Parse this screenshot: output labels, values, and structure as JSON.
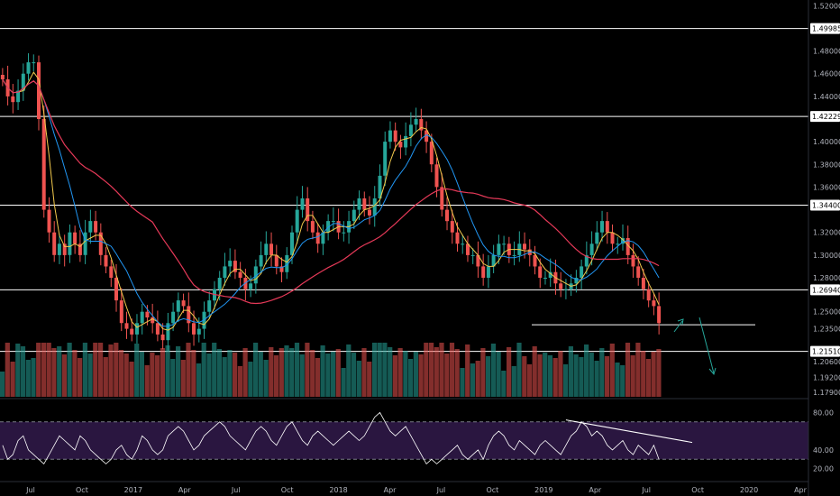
{
  "chart_data": {
    "type": "candlestick",
    "price_axis": {
      "ticks": [
        "1.52000",
        "1.48000",
        "1.46000",
        "1.44000",
        "1.40000",
        "1.38000",
        "1.36000",
        "1.32000",
        "1.30000",
        "1.28000",
        "1.25000",
        "1.23500",
        "1.20600",
        "1.19200",
        "1.17900"
      ],
      "range": [
        1.175,
        1.525
      ]
    },
    "levels": [
      {
        "value": 1.49985,
        "label": "1.49985"
      },
      {
        "value": 1.42229,
        "label": "1.42229"
      },
      {
        "value": 1.344,
        "label": "1.34400"
      },
      {
        "value": 1.2694,
        "label": "1.26940"
      },
      {
        "value": 1.2151,
        "label": "1.21510"
      }
    ],
    "support_line_price": 1.2385,
    "rsi_axis": {
      "ticks": [
        "80.00",
        "40.00",
        "20.00"
      ],
      "upper_band": 70,
      "lower_band": 30,
      "range": [
        10,
        90
      ]
    },
    "time_axis": [
      "Jul",
      "Oct",
      "2017",
      "Apr",
      "Jul",
      "Oct",
      "2018",
      "Apr",
      "Jul",
      "Oct",
      "2019",
      "Apr",
      "Jul",
      "Oct",
      "2020",
      "Apr"
    ],
    "closes": [
      1.455,
      1.44,
      1.435,
      1.445,
      1.46,
      1.47,
      1.47,
      1.42,
      1.34,
      1.32,
      1.3,
      1.31,
      1.3,
      1.32,
      1.31,
      1.3,
      1.32,
      1.33,
      1.32,
      1.3,
      1.29,
      1.28,
      1.26,
      1.24,
      1.235,
      1.23,
      1.24,
      1.25,
      1.245,
      1.24,
      1.23,
      1.225,
      1.24,
      1.25,
      1.26,
      1.255,
      1.24,
      1.23,
      1.235,
      1.25,
      1.26,
      1.27,
      1.28,
      1.29,
      1.295,
      1.285,
      1.28,
      1.27,
      1.275,
      1.29,
      1.3,
      1.31,
      1.3,
      1.29,
      1.285,
      1.3,
      1.32,
      1.34,
      1.35,
      1.33,
      1.32,
      1.31,
      1.32,
      1.33,
      1.33,
      1.32,
      1.32,
      1.33,
      1.34,
      1.35,
      1.34,
      1.335,
      1.35,
      1.37,
      1.4,
      1.41,
      1.4,
      1.395,
      1.405,
      1.415,
      1.42,
      1.41,
      1.4,
      1.38,
      1.36,
      1.34,
      1.33,
      1.32,
      1.31,
      1.31,
      1.3,
      1.3,
      1.29,
      1.28,
      1.29,
      1.3,
      1.31,
      1.31,
      1.3,
      1.3,
      1.31,
      1.305,
      1.3,
      1.29,
      1.28,
      1.28,
      1.285,
      1.275,
      1.27,
      1.27,
      1.275,
      1.28,
      1.29,
      1.3,
      1.31,
      1.32,
      1.33,
      1.32,
      1.31,
      1.31,
      1.315,
      1.3,
      1.29,
      1.28,
      1.27,
      1.26,
      1.255,
      1.24
    ],
    "rsi": [
      45,
      30,
      35,
      50,
      55,
      40,
      35,
      30,
      25,
      35,
      45,
      55,
      50,
      45,
      40,
      55,
      50,
      40,
      35,
      30,
      25,
      30,
      40,
      45,
      35,
      30,
      40,
      55,
      50,
      40,
      35,
      40,
      55,
      60,
      65,
      60,
      50,
      40,
      45,
      55,
      60,
      65,
      70,
      65,
      55,
      50,
      45,
      40,
      50,
      60,
      65,
      60,
      50,
      45,
      55,
      65,
      70,
      60,
      50,
      45,
      55,
      60,
      55,
      50,
      45,
      50,
      55,
      60,
      55,
      50,
      55,
      65,
      75,
      80,
      70,
      60,
      55,
      60,
      65,
      55,
      45,
      35,
      25,
      30,
      25,
      30,
      35,
      40,
      45,
      35,
      30,
      35,
      40,
      30,
      45,
      55,
      60,
      55,
      45,
      40,
      50,
      45,
      40,
      35,
      45,
      50,
      45,
      40,
      35,
      45,
      55,
      60,
      70,
      65,
      55,
      60,
      55,
      45,
      40,
      45,
      50,
      40,
      35,
      45,
      40,
      35,
      45,
      30
    ],
    "annotations": [
      {
        "type": "trendline",
        "panel": "rsi",
        "from_index": 109,
        "to_index": 127,
        "from_value": 72,
        "to_value": 48
      },
      {
        "type": "arrow",
        "direction": "up",
        "color": "#26a69a"
      },
      {
        "type": "arrow",
        "direction": "down",
        "color": "#26a69a"
      }
    ],
    "colors": {
      "up": "#26a69a",
      "down": "#ef5350",
      "ma_fast": "#f2c94c",
      "ma_mid": "#2196f3",
      "ma_slow": "#e53958",
      "rsi_line": "#ffffff",
      "rsi_band": "#2a1640",
      "levels": "#ffffff"
    }
  }
}
